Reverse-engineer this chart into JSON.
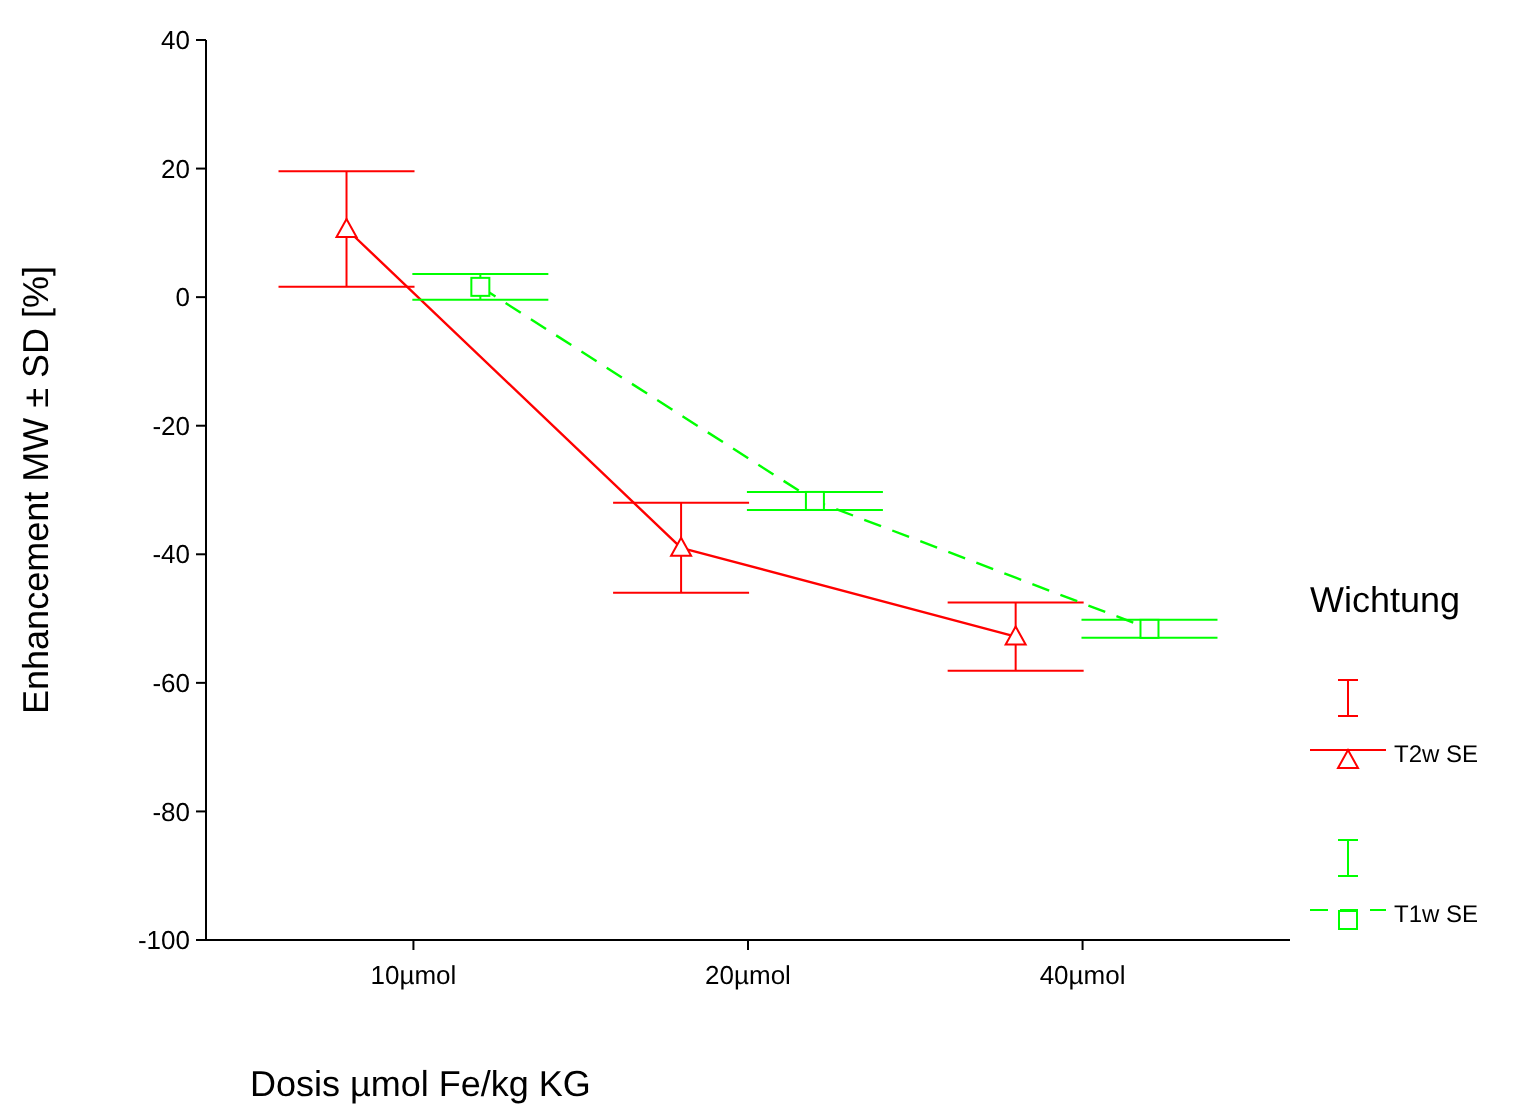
{
  "chart_data": {
    "type": "line",
    "xlabel": "Dosis µmol Fe/kg KG",
    "ylabel": "Enhancement  MW ± SD [%]",
    "legend_title": "Wichtung",
    "legend": "right",
    "grid": false,
    "categories": [
      "10µmol",
      "20µmol",
      "40µmol"
    ],
    "ylim": [
      -100,
      40
    ],
    "yticks": [
      -100,
      -80,
      -60,
      -40,
      -20,
      0,
      20,
      40
    ],
    "series": [
      {
        "name": "T2w SE",
        "color": "#ff0000",
        "marker": "triangle",
        "line_style": "solid",
        "values": [
          10.6,
          -39,
          -52.8
        ],
        "errors": [
          9,
          7,
          5.3
        ]
      },
      {
        "name": "T1w SE",
        "color": "#00ff00",
        "marker": "square",
        "line_style": "dashed",
        "values": [
          1.6,
          -31.7,
          -51.6
        ],
        "errors": [
          2,
          1.4,
          1.4
        ]
      }
    ]
  }
}
